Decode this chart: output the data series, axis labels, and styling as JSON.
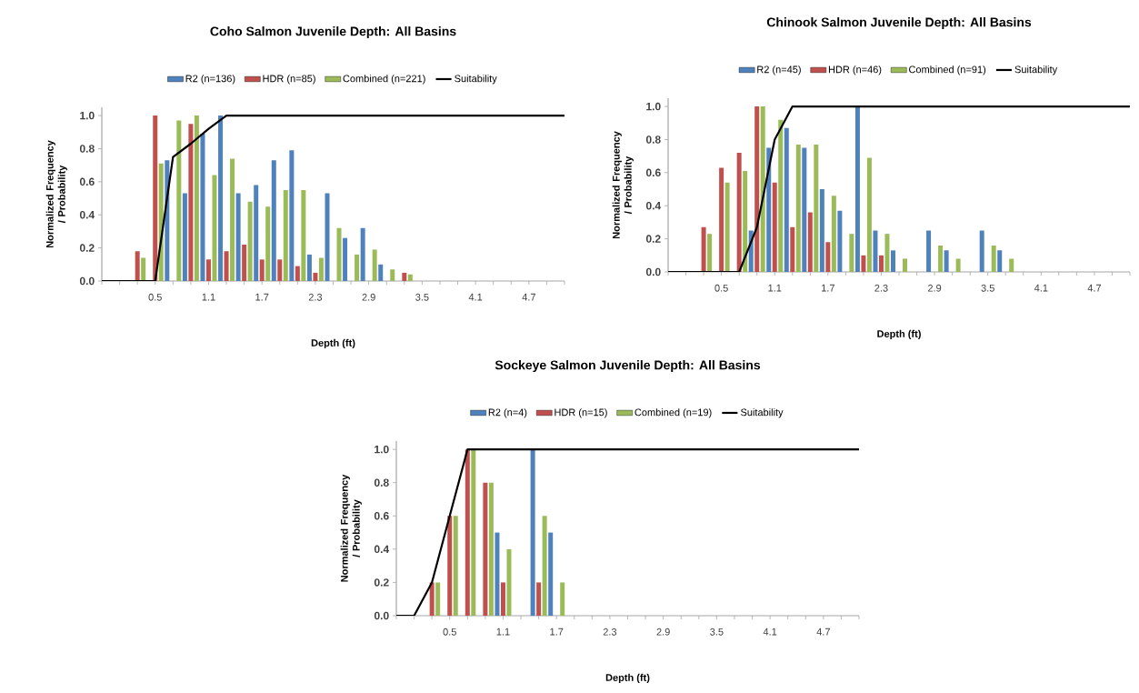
{
  "chart_data": [
    {
      "type": "bar",
      "title": "Coho Salmon Juvenile Depth:  All Basins",
      "xlabel": "Depth (ft)",
      "ylabel": "Normalized Frequency / Probability",
      "categories": [
        null,
        null,
        null,
        "0.5",
        null,
        null,
        "1.1",
        null,
        null,
        "1.7",
        null,
        null,
        "2.3",
        null,
        null,
        "2.9",
        null,
        null,
        "3.5",
        null,
        null,
        "4.1",
        null,
        null,
        "4.7",
        null,
        null
      ],
      "series": [
        {
          "name": "R2 (n=136)",
          "color": "#4f81bd",
          "values": [
            0,
            0,
            0,
            0,
            0.73,
            0.53,
            0.89,
            1.0,
            0.53,
            0.58,
            0.73,
            0.79,
            0.16,
            0.53,
            0.26,
            0.32,
            0.1,
            0,
            0,
            0,
            0,
            0,
            0,
            0,
            0,
            0,
            0
          ]
        },
        {
          "name": "HDR (n=85)",
          "color": "#c0504d",
          "values": [
            0,
            0,
            0.18,
            1.0,
            0,
            0.95,
            0.13,
            0.18,
            0.22,
            0.13,
            0.13,
            0.09,
            0.05,
            0,
            0,
            0,
            0,
            0.05,
            0,
            0,
            0,
            0,
            0,
            0,
            0,
            0,
            0
          ]
        },
        {
          "name": "Combined (n=221)",
          "color": "#9bbb59",
          "values": [
            0,
            0,
            0.14,
            0.71,
            0.97,
            1.0,
            0.64,
            0.74,
            0.48,
            0.45,
            0.55,
            0.55,
            0.14,
            0.32,
            0.16,
            0.19,
            0.07,
            0.04,
            0,
            0,
            0,
            0,
            0,
            0,
            0,
            0,
            0
          ]
        },
        {
          "name": "Suitability",
          "type": "line",
          "color": "#000000",
          "values": [
            0,
            0,
            0,
            0,
            0.75,
            0.83,
            0.92,
            1,
            1,
            1,
            1,
            1,
            1,
            1,
            1,
            1,
            1,
            1,
            1,
            1,
            1,
            1,
            1,
            1,
            1,
            1,
            1
          ]
        }
      ],
      "ylim": [
        0,
        1.05
      ],
      "yticks": [
        {
          "value": 0,
          "label": "0.0"
        },
        {
          "value": 0.2,
          "label": "0.2"
        },
        {
          "value": 0.4,
          "label": "0.4"
        },
        {
          "value": 0.6,
          "label": "0.6"
        },
        {
          "value": 0.8,
          "label": "0.8"
        },
        {
          "value": 1,
          "label": "1.0"
        }
      ],
      "legend": "top"
    },
    {
      "type": "bar",
      "title": "Chinook Salmon Juvenile Depth:  All Basins",
      "xlabel": "Depth (ft)",
      "ylabel": "Normalized Frequency / Probability",
      "categories": [
        null,
        null,
        null,
        "0.5",
        null,
        null,
        "1.1",
        null,
        null,
        "1.7",
        null,
        null,
        "2.3",
        null,
        null,
        "2.9",
        null,
        null,
        "3.5",
        null,
        null,
        "4.1",
        null,
        null,
        "4.7",
        null,
        null
      ],
      "series": [
        {
          "name": "R2 (n=45)",
          "color": "#4f81bd",
          "values": [
            0,
            0,
            0,
            0,
            0,
            0.25,
            0.75,
            0.87,
            0.75,
            0.5,
            0.37,
            1.0,
            0.25,
            0.13,
            0,
            0.25,
            0.13,
            0,
            0.25,
            0.13,
            0,
            0,
            0,
            0,
            0,
            0,
            0
          ]
        },
        {
          "name": "HDR (n=46)",
          "color": "#c0504d",
          "values": [
            0,
            0,
            0.27,
            0.63,
            0.72,
            1.0,
            0.54,
            0.27,
            0.36,
            0.18,
            0,
            0.1,
            0.1,
            0,
            0,
            0,
            0,
            0,
            0,
            0,
            0,
            0,
            0,
            0,
            0,
            0,
            0
          ]
        },
        {
          "name": "Combined (n=91)",
          "color": "#9bbb59",
          "values": [
            0,
            0,
            0.23,
            0.54,
            0.61,
            1.0,
            0.92,
            0.77,
            0.77,
            0.46,
            0.23,
            0.69,
            0.23,
            0.08,
            0,
            0.16,
            0.08,
            0,
            0.16,
            0.08,
            0,
            0,
            0,
            0,
            0,
            0,
            0
          ]
        },
        {
          "name": "Suitability",
          "type": "line",
          "color": "#000000",
          "values": [
            0,
            0,
            0,
            0,
            0,
            0.27,
            0.8,
            1,
            1,
            1,
            1,
            1,
            1,
            1,
            1,
            1,
            1,
            1,
            1,
            1,
            1,
            1,
            1,
            1,
            1,
            1,
            1
          ]
        }
      ],
      "ylim": [
        0,
        1.05
      ],
      "yticks": [
        {
          "value": 0,
          "label": "0.0"
        },
        {
          "value": 0.2,
          "label": "0.2"
        },
        {
          "value": 0.4,
          "label": "0.4"
        },
        {
          "value": 0.6,
          "label": "0.6"
        },
        {
          "value": 0.8,
          "label": "0.8"
        },
        {
          "value": 1,
          "label": "1.0"
        }
      ],
      "legend": "top"
    },
    {
      "type": "bar",
      "title": "Sockeye Salmon Juvenile Depth:  All Basins",
      "xlabel": "Depth (ft)",
      "ylabel": "Normalized Frequency / Probability",
      "categories": [
        null,
        null,
        null,
        "0.5",
        null,
        null,
        "1.1",
        null,
        null,
        "1.7",
        null,
        null,
        "2.3",
        null,
        null,
        "2.9",
        null,
        null,
        "3.5",
        null,
        null,
        "4.1",
        null,
        null,
        "4.7",
        null,
        null
      ],
      "series": [
        {
          "name": "R2 (n=4)",
          "color": "#4f81bd",
          "values": [
            0,
            0,
            0,
            0,
            0,
            0,
            0.5,
            0,
            1.0,
            0.5,
            0,
            0,
            0,
            0,
            0,
            0,
            0,
            0,
            0,
            0,
            0,
            0,
            0,
            0,
            0,
            0,
            0
          ]
        },
        {
          "name": "HDR (n=15)",
          "color": "#c0504d",
          "values": [
            0,
            0,
            0.2,
            0.6,
            1.0,
            0.8,
            0.2,
            0,
            0.2,
            0,
            0,
            0,
            0,
            0,
            0,
            0,
            0,
            0,
            0,
            0,
            0,
            0,
            0,
            0,
            0,
            0,
            0
          ]
        },
        {
          "name": "Combined (n=19)",
          "color": "#9bbb59",
          "values": [
            0,
            0,
            0.2,
            0.6,
            1.0,
            0.8,
            0.4,
            0,
            0.6,
            0.2,
            0,
            0,
            0,
            0,
            0,
            0,
            0,
            0,
            0,
            0,
            0,
            0,
            0,
            0,
            0,
            0,
            0
          ]
        },
        {
          "name": "Suitability",
          "type": "line",
          "color": "#000000",
          "values": [
            0,
            0,
            0.2,
            0.6,
            1,
            1,
            1,
            1,
            1,
            1,
            1,
            1,
            1,
            1,
            1,
            1,
            1,
            1,
            1,
            1,
            1,
            1,
            1,
            1,
            1,
            1,
            1
          ]
        }
      ],
      "ylim": [
        0,
        1.05
      ],
      "yticks": [
        {
          "value": 0,
          "label": "0.0"
        },
        {
          "value": 0.2,
          "label": "0.2"
        },
        {
          "value": 0.4,
          "label": "0.4"
        },
        {
          "value": 0.6,
          "label": "0.6"
        },
        {
          "value": 0.8,
          "label": "0.8"
        },
        {
          "value": 1,
          "label": "1.0"
        }
      ],
      "legend": "top"
    }
  ]
}
